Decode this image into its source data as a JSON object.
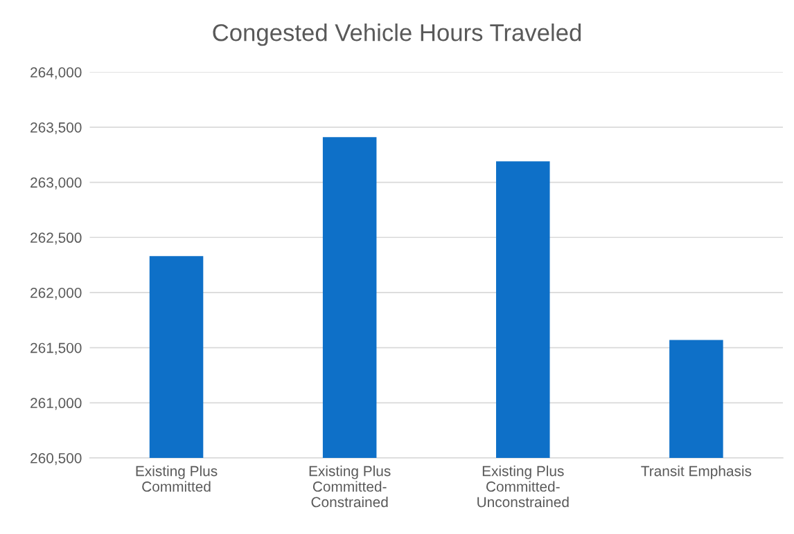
{
  "chart_data": {
    "type": "bar",
    "title": "Congested Vehicle Hours Traveled",
    "categories": [
      "Existing Plus\nCommitted",
      "Existing Plus\nCommitted-\nConstrained",
      "Existing Plus\nCommitted-\nUnconstrained",
      "Transit Emphasis"
    ],
    "values": [
      262330,
      263410,
      263190,
      261570
    ],
    "color": "#0e70c8",
    "ylim": [
      260500,
      264000
    ],
    "yticks": [
      {
        "value": 260500,
        "label": "260,500"
      },
      {
        "value": 261000,
        "label": "261,000"
      },
      {
        "value": 261500,
        "label": "261,500"
      },
      {
        "value": 262000,
        "label": "262,000"
      },
      {
        "value": 262500,
        "label": "262,500"
      },
      {
        "value": 263000,
        "label": "263,000"
      },
      {
        "value": 263500,
        "label": "263,500"
      },
      {
        "value": 264000,
        "label": "264,000"
      }
    ],
    "grid": "y"
  }
}
